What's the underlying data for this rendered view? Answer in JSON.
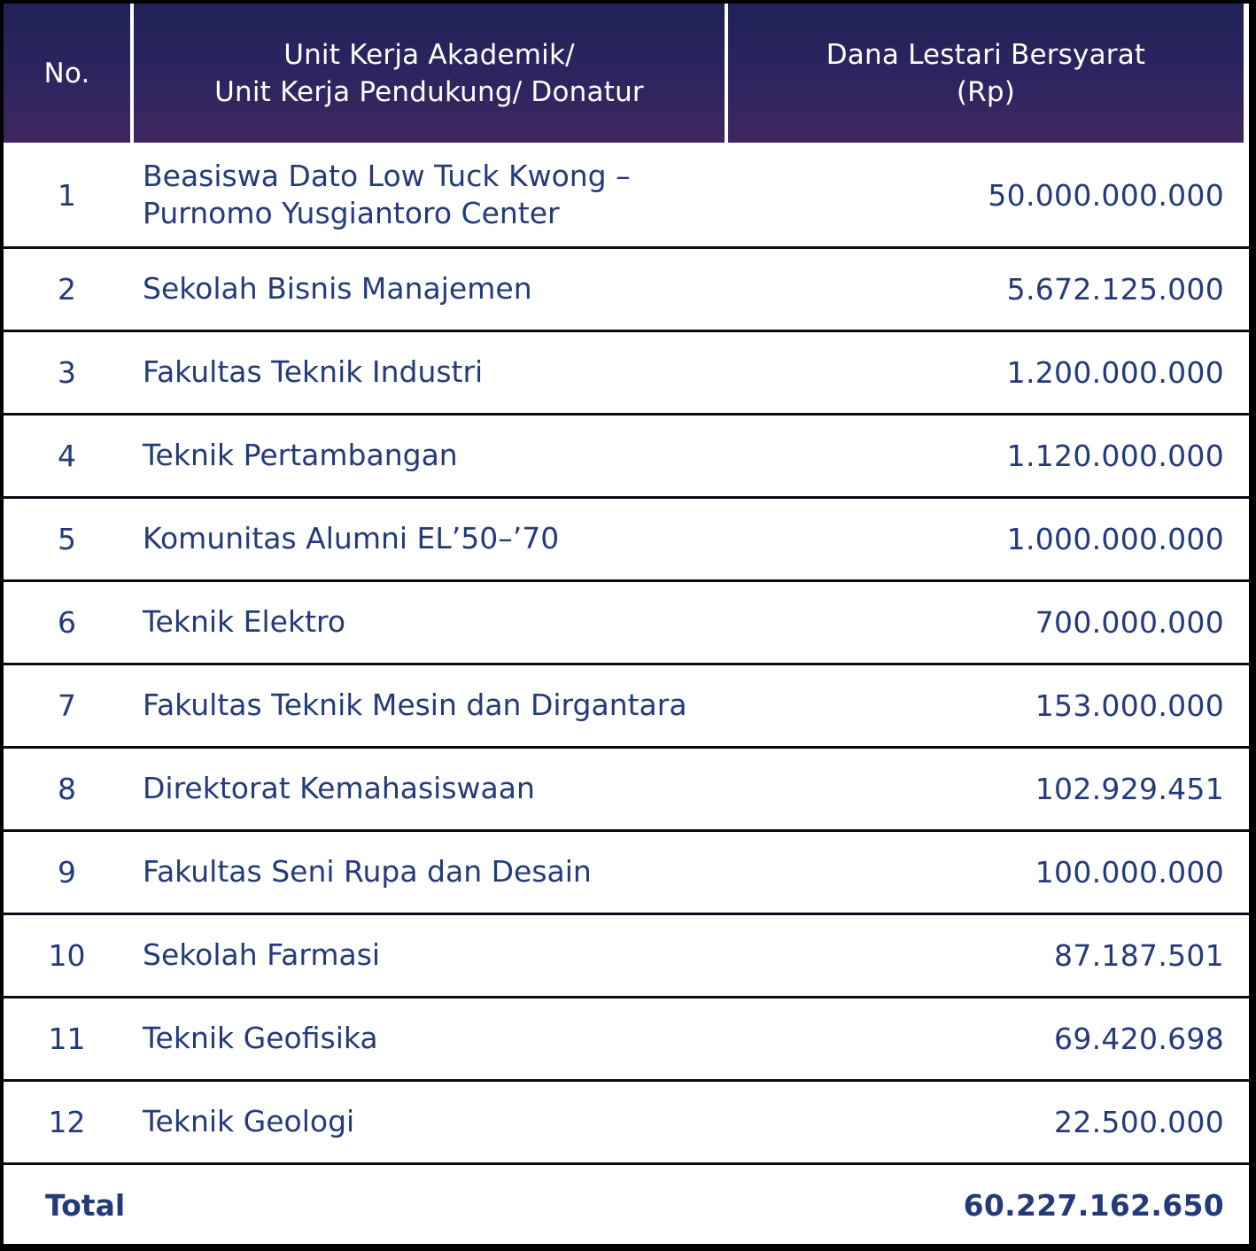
{
  "table": {
    "headers": {
      "no": "No.",
      "unit_line1": "Unit Kerja Akademik/",
      "unit_line2": "Unit Kerja Pendukung/ Donatur",
      "amount_line1": "Dana Lestari Bersyarat",
      "amount_line2": "(Rp)"
    },
    "rows": [
      {
        "no": "1",
        "name_line1": "Beasiswa Dato Low Tuck Kwong –",
        "name_line2": "Purnomo Yusgiantoro Center",
        "amount": "50.000.000.000"
      },
      {
        "no": "2",
        "name": "Sekolah Bisnis Manajemen",
        "amount": "5.672.125.000"
      },
      {
        "no": "3",
        "name": "Fakultas Teknik Industri",
        "amount": "1.200.000.000"
      },
      {
        "no": "4",
        "name": "Teknik Pertambangan",
        "amount": "1.120.000.000"
      },
      {
        "no": "5",
        "name": "Komunitas Alumni EL’50–’70",
        "amount": "1.000.000.000"
      },
      {
        "no": "6",
        "name": "Teknik Elektro",
        "amount": "700.000.000"
      },
      {
        "no": "7",
        "name": "Fakultas Teknik Mesin dan Dirgantara",
        "amount": "153.000.000"
      },
      {
        "no": "8",
        "name": "Direktorat Kemahasiswaan",
        "amount": "102.929.451"
      },
      {
        "no": "9",
        "name": "Fakultas Seni Rupa dan Desain",
        "amount": "100.000.000"
      },
      {
        "no": "10",
        "name": "Sekolah Farmasi",
        "amount": "87.187.501"
      },
      {
        "no": "11",
        "name": "Teknik Geofisika",
        "amount": "69.420.698"
      },
      {
        "no": "12",
        "name": "Teknik Geologi",
        "amount": "22.500.000"
      }
    ],
    "total": {
      "label": "Total",
      "amount": "60.227.162.650"
    }
  }
}
